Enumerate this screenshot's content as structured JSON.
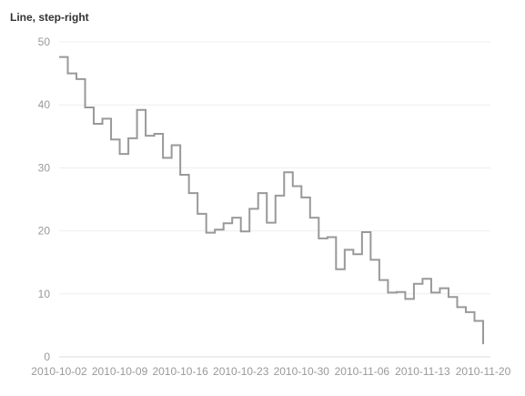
{
  "chart_data": {
    "type": "line",
    "title": "Line, step-right",
    "step": "right",
    "xlabel": "",
    "ylabel": "",
    "x_type": "date",
    "xlim": [
      "2010-10-02",
      "2010-11-20"
    ],
    "ylim": [
      0,
      50
    ],
    "y_ticks": [
      0,
      10,
      20,
      30,
      40,
      50
    ],
    "x_ticks": [
      "2010-10-02",
      "2010-10-09",
      "2010-10-16",
      "2010-10-23",
      "2010-10-30",
      "2010-11-06",
      "2010-11-13",
      "2010-11-20"
    ],
    "grid": true,
    "legend": false,
    "color": "#999999",
    "series": [
      {
        "x": [
          "2010-10-02",
          "2010-10-03",
          "2010-10-04",
          "2010-10-05",
          "2010-10-06",
          "2010-10-07",
          "2010-10-08",
          "2010-10-09",
          "2010-10-10",
          "2010-10-11",
          "2010-10-12",
          "2010-10-13",
          "2010-10-14",
          "2010-10-15",
          "2010-10-16",
          "2010-10-17",
          "2010-10-18",
          "2010-10-19",
          "2010-10-20",
          "2010-10-21",
          "2010-10-22",
          "2010-10-23",
          "2010-10-24",
          "2010-10-25",
          "2010-10-26",
          "2010-10-27",
          "2010-10-28",
          "2010-10-29",
          "2010-10-30",
          "2010-10-31",
          "2010-11-01",
          "2010-11-02",
          "2010-11-03",
          "2010-11-04",
          "2010-11-05",
          "2010-11-06",
          "2010-11-07",
          "2010-11-08",
          "2010-11-09",
          "2010-11-10",
          "2010-11-11",
          "2010-11-12",
          "2010-11-13",
          "2010-11-14",
          "2010-11-15",
          "2010-11-16",
          "2010-11-17",
          "2010-11-18",
          "2010-11-19",
          "2010-11-20"
        ],
        "values": [
          47.6,
          45.0,
          44.1,
          39.6,
          37.0,
          37.8,
          34.5,
          32.2,
          34.7,
          39.2,
          35.1,
          35.4,
          31.6,
          33.6,
          28.9,
          26.0,
          22.7,
          19.7,
          20.2,
          21.2,
          22.1,
          19.9,
          23.5,
          26.0,
          21.3,
          25.6,
          29.3,
          27.1,
          25.3,
          22.1,
          18.8,
          19.0,
          13.9,
          17.0,
          16.3,
          19.8,
          15.4,
          12.2,
          10.2,
          10.3,
          9.2,
          11.6,
          12.4,
          10.2,
          10.9,
          9.5,
          7.9,
          7.1,
          5.7,
          2.0
        ]
      }
    ]
  }
}
